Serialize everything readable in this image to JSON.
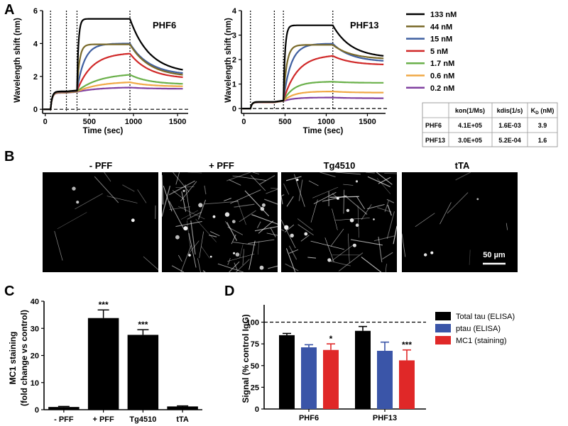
{
  "panels": {
    "a": {
      "letter": "A",
      "concentrations": [
        "133 nM",
        "44 nM",
        "15 nM",
        "5 nM",
        "1.7 nM",
        "0.6 nM",
        "0.2 nM"
      ],
      "colors": [
        "#000000",
        "#7a6a2a",
        "#3f5fa0",
        "#d02828",
        "#6ab04a",
        "#f0a845",
        "#8040a0"
      ],
      "charts": [
        {
          "title": "PHF6",
          "ylabel": "Wavelength shift (nm)",
          "xlabel": "Time (sec)",
          "xticks": [
            0,
            500,
            1000,
            1500
          ],
          "yticks": [
            0,
            2,
            4,
            6
          ],
          "xlim": [
            -30,
            1620
          ],
          "ylim": [
            -0.25,
            6.0
          ],
          "event_times": [
            60,
            240,
            360,
            960
          ],
          "baseline_end": 60,
          "loading_level": 1.0,
          "load_end": 240,
          "assoc_start": 360,
          "dissoc_start": 960,
          "end_time": 1560,
          "plateaus": [
            5.5,
            3.95,
            4.0,
            3.45,
            2.2,
            1.7,
            1.35
          ],
          "rates": [
            0.06,
            0.035,
            0.012,
            0.006,
            0.004,
            0.004,
            0.004
          ],
          "final_values": [
            2.4,
            2.1,
            2.2,
            1.95,
            1.55,
            1.4,
            1.25
          ]
        },
        {
          "title": "PHF13",
          "ylabel": "Wavelength shift (nm)",
          "xlabel": "Time (sec)",
          "xticks": [
            0,
            500,
            1000,
            1500
          ],
          "yticks": [
            0,
            1,
            2,
            3,
            4
          ],
          "xlim": [
            -30,
            1720
          ],
          "ylim": [
            -0.2,
            4.0
          ],
          "event_times": [
            80,
            370,
            480,
            1080
          ],
          "baseline_end": 80,
          "loading_level": 0.25,
          "load_end": 370,
          "assoc_start": 480,
          "dissoc_start": 1080,
          "end_time": 1700,
          "plateaus": [
            3.4,
            2.6,
            2.65,
            2.2,
            1.1,
            0.7,
            0.45
          ],
          "rates": [
            0.05,
            0.025,
            0.011,
            0.006,
            0.008,
            0.008,
            0.008
          ],
          "final_values": [
            2.15,
            2.05,
            1.95,
            1.8,
            1.05,
            0.65,
            0.42
          ]
        }
      ],
      "table": {
        "headers": [
          "",
          "kon(1/Ms)",
          "kdis(1/s)",
          "K_D (nM)"
        ],
        "kd_main": "K",
        "kd_sub": "D",
        "kd_tail": " (nM)",
        "rows": [
          [
            "PHF6",
            "4.1E+05",
            "1.6E-03",
            "3.9"
          ],
          [
            "PHF13",
            "3.0E+05",
            "5.2E-04",
            "1.6"
          ]
        ]
      }
    },
    "b": {
      "letter": "B",
      "images": [
        {
          "title": "- PFF",
          "density": 0.1
        },
        {
          "title": "+ PFF",
          "density": 1.0
        },
        {
          "title": "Tg4510",
          "density": 0.85
        },
        {
          "title": "tTA",
          "density": 0.05
        }
      ],
      "scale_bar": "50 µm"
    },
    "c": {
      "letter": "C",
      "chart_data": {
        "type": "bar",
        "categories": [
          "- PFF",
          "+ PFF",
          "Tg4510",
          "tTA"
        ],
        "values": [
          1.0,
          33.8,
          27.6,
          1.2
        ],
        "errors": [
          0.2,
          3.0,
          1.9,
          0.2
        ],
        "significance": [
          "",
          "***",
          "***",
          ""
        ],
        "ylabel_line1": "MC1 staining",
        "ylabel_line2": "(fold change vs control)",
        "ylim": [
          0,
          40
        ],
        "yticks": [
          0,
          10,
          20,
          30,
          40
        ],
        "bar_color": "#000000"
      }
    },
    "d": {
      "letter": "D",
      "chart_data": {
        "type": "bar",
        "categories": [
          "PHF6",
          "PHF13"
        ],
        "series": [
          {
            "name": "Total tau (ELISA)",
            "values": [
              85,
              90
            ],
            "errors": [
              2,
              5
            ],
            "color": "#000000"
          },
          {
            "name": "ptau (ELISA)",
            "values": [
              71,
              67
            ],
            "errors": [
              3,
              10
            ],
            "color": "#3a55a8"
          },
          {
            "name": "MC1 (staining)",
            "values": [
              68,
              56
            ],
            "errors": [
              7,
              12
            ],
            "color": "#e02828"
          }
        ],
        "significance": [
          [
            "",
            "",
            "*"
          ],
          [
            "",
            "",
            "***"
          ]
        ],
        "ylabel": "Signal (% control IgG)",
        "ylim": [
          0,
          120
        ],
        "yticks": [
          0,
          25,
          50,
          75,
          100
        ],
        "reference_line": 100,
        "legend_position": "top-right"
      }
    }
  }
}
